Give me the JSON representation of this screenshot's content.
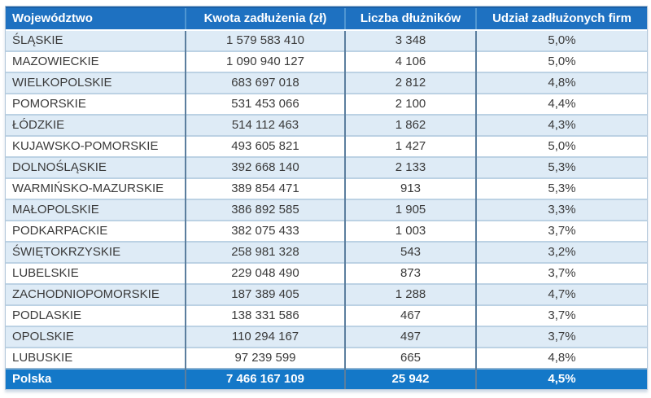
{
  "colors": {
    "header_bg": "#1e71c1",
    "footer_bg": "#1478c8",
    "alt_row_bg": "#deebf6",
    "horizontal_grid": "#bcd2e4",
    "vertical_grid": "#5b7e9e",
    "header_text": "#ffffff",
    "body_text": "#3a3a3a"
  },
  "chart_data": {
    "type": "table",
    "columns": [
      "Województwo",
      "Kwota zadłużenia (zł)",
      "Liczba dłużników",
      "Udział zadłużonych firm"
    ],
    "rows": [
      [
        "ŚLĄSKIE",
        "1 579 583 410",
        "3 348",
        "5,0%"
      ],
      [
        "MAZOWIECKIE",
        "1 090 940 127",
        "4 106",
        "5,0%"
      ],
      [
        "WIELKOPOLSKIE",
        "683 697 018",
        "2 812",
        "4,8%"
      ],
      [
        "POMORSKIE",
        "531 453 066",
        "2 100",
        "4,4%"
      ],
      [
        "ŁÓDZKIE",
        "514 112 463",
        "1 862",
        "4,3%"
      ],
      [
        "KUJAWSKO-POMORSKIE",
        "493 605 821",
        "1 427",
        "5,0%"
      ],
      [
        "DOLNOŚLĄSKIE",
        "392 668 140",
        "2 133",
        "5,3%"
      ],
      [
        "WARMIŃSKO-MAZURSKIE",
        "389 854 471",
        "913",
        "5,3%"
      ],
      [
        "MAŁOPOLSKIE",
        "386 892 585",
        "1 905",
        "3,3%"
      ],
      [
        "PODKARPACKIE",
        "382 075 433",
        "1 003",
        "3,7%"
      ],
      [
        "ŚWIĘTOKRZYSKIE",
        "258 981 328",
        "543",
        "3,2%"
      ],
      [
        "LUBELSKIE",
        "229 048 490",
        "873",
        "3,7%"
      ],
      [
        "ZACHODNIOPOMORSKIE",
        "187 389 405",
        "1 288",
        "4,7%"
      ],
      [
        "PODLASKIE",
        "138 331 586",
        "467",
        "3,7%"
      ],
      [
        "OPOLSKIE",
        "110 294 167",
        "497",
        "3,7%"
      ],
      [
        "LUBUSKIE",
        "97 239 599",
        "665",
        "4,8%"
      ]
    ],
    "footer": [
      "Polska",
      "7 466 167 109",
      "25 942",
      "4,5%"
    ]
  }
}
